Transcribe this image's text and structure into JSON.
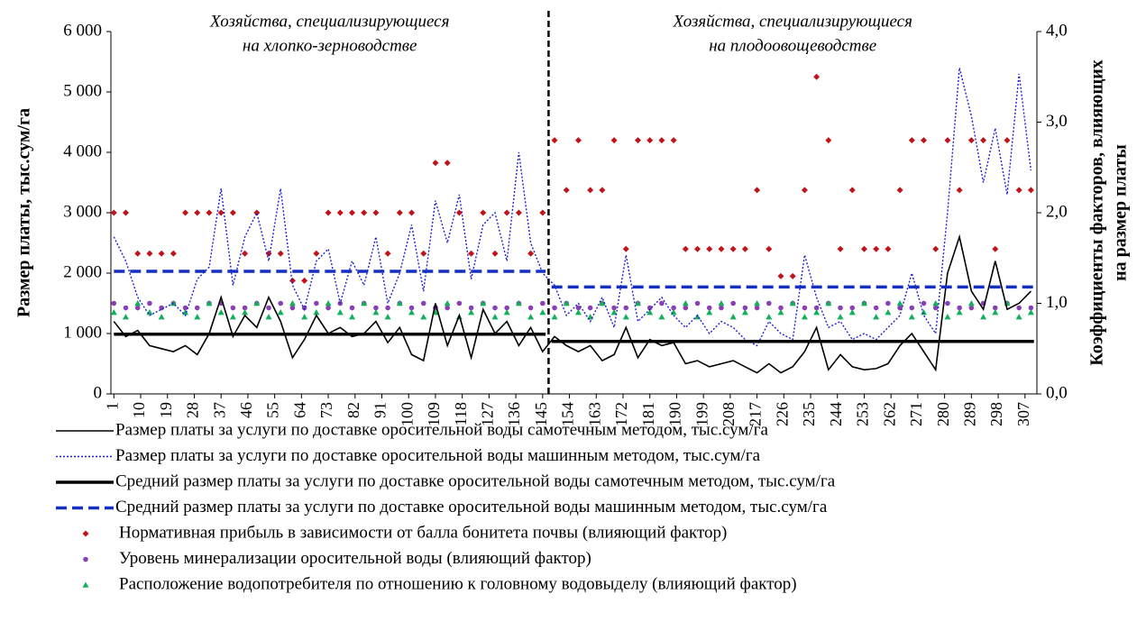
{
  "chart_data": {
    "type": "line",
    "annotations": [
      [
        "Хозяйства, специализирующиеся",
        "на хлопко-зерноводстве"
      ],
      [
        "Хозяйства, специализирующиеся",
        "на плодоовощеводстве"
      ]
    ],
    "divider_x": 147,
    "ylabel": "Размер платы, тыс.сум/га",
    "y2label": [
      "Коэффициенты факторов, влияющих",
      "на размер платы"
    ],
    "xlim": [
      0,
      311
    ],
    "xticks": [
      1,
      10,
      19,
      28,
      37,
      46,
      55,
      64,
      73,
      82,
      91,
      100,
      109,
      118,
      127,
      136,
      145,
      154,
      163,
      172,
      181,
      190,
      199,
      208,
      217,
      226,
      235,
      244,
      253,
      262,
      271,
      280,
      289,
      298,
      307
    ],
    "ylim": [
      0,
      6000
    ],
    "yticks": [
      0,
      {
        "value": 1000,
        "label": "1 000"
      },
      {
        "value": 2000,
        "label": "2 000"
      },
      {
        "value": 3000,
        "label": "3 000"
      },
      {
        "value": 4000,
        "label": "4 000"
      },
      {
        "value": 5000,
        "label": "5 000"
      },
      {
        "value": 6000,
        "label": "6 000"
      }
    ],
    "y2lim": [
      0,
      4
    ],
    "y2ticks": [
      {
        "value": 0,
        "label": "0,0"
      },
      {
        "value": 1,
        "label": "1,0"
      },
      {
        "value": 2,
        "label": "2,0"
      },
      {
        "value": 3,
        "label": "3,0"
      },
      {
        "value": 4,
        "label": "4,0"
      }
    ],
    "x": [
      1,
      5,
      9,
      13,
      17,
      21,
      25,
      29,
      33,
      37,
      41,
      45,
      49,
      53,
      57,
      61,
      65,
      69,
      73,
      77,
      81,
      85,
      89,
      93,
      97,
      101,
      105,
      109,
      113,
      117,
      121,
      125,
      129,
      133,
      137,
      141,
      145,
      149,
      153,
      157,
      161,
      165,
      169,
      173,
      177,
      181,
      185,
      189,
      193,
      197,
      201,
      205,
      209,
      213,
      217,
      221,
      225,
      229,
      233,
      237,
      241,
      245,
      249,
      253,
      257,
      261,
      265,
      269,
      273,
      277,
      281,
      285,
      289,
      293,
      297,
      301,
      305,
      309
    ],
    "series": [
      {
        "name": "Размер платы за услуги  по доставке оросительной воды самотечным методом, тыс.сум/га",
        "color": "#000000",
        "style": "line",
        "values": [
          1200,
          950,
          1050,
          800,
          750,
          700,
          800,
          650,
          1000,
          1600,
          950,
          1300,
          1100,
          1600,
          1200,
          600,
          900,
          1300,
          1000,
          1100,
          950,
          1000,
          1200,
          850,
          1100,
          650,
          550,
          1500,
          800,
          1300,
          600,
          1400,
          1000,
          1200,
          800,
          1100,
          700,
          950,
          800,
          700,
          800,
          550,
          650,
          1100,
          600,
          900,
          800,
          850,
          500,
          550,
          450,
          500,
          550,
          450,
          350,
          500,
          350,
          450,
          700,
          1100,
          400,
          650,
          450,
          400,
          420,
          500,
          800,
          1000,
          700,
          400,
          2000,
          2600,
          1700,
          1400,
          2200,
          1400,
          1500,
          1700
        ]
      },
      {
        "name": "Размер платы за услуги  по доставке оросительной воды машинным методом, тыс.сум/га",
        "color": "#1f1fd1",
        "style": "dotted",
        "values": [
          2600,
          2200,
          1600,
          1300,
          1400,
          1500,
          1300,
          1900,
          2100,
          3400,
          1800,
          2600,
          3000,
          2200,
          3400,
          1800,
          1400,
          2200,
          2400,
          1500,
          2200,
          1800,
          2600,
          1500,
          2000,
          2800,
          1700,
          3200,
          2500,
          3300,
          1900,
          2800,
          3000,
          2200,
          4000,
          2500,
          2000,
          1800,
          1300,
          1500,
          1200,
          1600,
          1100,
          2300,
          1200,
          1400,
          1600,
          1300,
          1100,
          1300,
          1000,
          1200,
          1100,
          900,
          800,
          1200,
          1000,
          900,
          2300,
          1600,
          1100,
          1200,
          900,
          1000,
          900,
          1100,
          1300,
          2000,
          1300,
          1000,
          3000,
          5400,
          4600,
          3500,
          4400,
          3300,
          5300,
          3700
        ]
      },
      {
        "name": "Средний размер платы за услуги  по доставке оросительной воды самотечным методом, тыс.сум/га",
        "color": "#000000",
        "style": "thick",
        "x": [
          1,
          146,
          147,
          148,
          310
        ],
        "values": [
          990,
          990,
          null,
          870,
          870
        ]
      },
      {
        "name": "Средний размер платы за услуги  по доставке оросительной воды машинным методом, тыс.сум/га",
        "color": "#1530c0",
        "style": "dashed",
        "x": [
          1,
          146,
          147,
          148,
          310
        ],
        "values": [
          2030,
          2030,
          null,
          1770,
          1770
        ]
      },
      {
        "name": "Нормативная прибыль в зависимости от балла бонитета почвы (влияющий фактор)",
        "color": "#c0141c",
        "style": "scatter",
        "marker": "diamond",
        "axis": "y2",
        "values": [
          2.0,
          2.0,
          1.55,
          1.55,
          1.55,
          1.55,
          2.0,
          2.0,
          2.0,
          2.0,
          2.0,
          1.55,
          2.0,
          1.55,
          1.55,
          1.25,
          1.25,
          1.55,
          2.0,
          2.0,
          2.0,
          2.0,
          2.0,
          1.55,
          2.0,
          2.0,
          1.55,
          2.55,
          2.55,
          2.0,
          1.55,
          2.0,
          1.55,
          2.0,
          2.0,
          1.55,
          2.0,
          2.8,
          2.25,
          2.8,
          2.25,
          2.25,
          2.8,
          1.6,
          2.8,
          2.8,
          2.8,
          2.8,
          1.6,
          1.6,
          1.6,
          1.6,
          1.6,
          1.6,
          2.25,
          1.6,
          1.3,
          1.3,
          2.25,
          3.5,
          2.8,
          1.6,
          2.25,
          1.6,
          1.6,
          1.6,
          2.25,
          2.8,
          2.8,
          1.6,
          2.8,
          2.25,
          2.8,
          2.8,
          1.6,
          2.8,
          2.25,
          2.25
        ]
      },
      {
        "name": "Уровень минерализации  оросительной воды (влияющий фактор)",
        "color": "#8b3fb5",
        "style": "scatter",
        "marker": "circle",
        "axis": "y2",
        "values": [
          1.0,
          0.95,
          0.95,
          1.0,
          0.95,
          1.0,
          0.95,
          0.95,
          1.0,
          1.0,
          0.95,
          0.95,
          1.0,
          0.95,
          1.0,
          0.95,
          0.95,
          1.0,
          0.95,
          1.0,
          0.95,
          1.0,
          0.95,
          0.95,
          1.0,
          0.95,
          1.0,
          0.95,
          0.95,
          1.0,
          0.95,
          1.0,
          0.95,
          0.95,
          1.0,
          0.95,
          1.0,
          0.95,
          1.0,
          0.95,
          0.95,
          1.0,
          0.95,
          0.95,
          1.0,
          0.95,
          1.0,
          0.95,
          0.95,
          1.0,
          0.95,
          0.95,
          1.0,
          0.95,
          0.95,
          1.0,
          0.95,
          1.0,
          0.95,
          0.95,
          1.0,
          0.95,
          0.95,
          1.0,
          0.95,
          1.0,
          0.95,
          0.95,
          1.0,
          0.95,
          1.0,
          0.95,
          0.95,
          1.0,
          0.95,
          1.0,
          0.95,
          0.95
        ]
      },
      {
        "name": "Расположение водопотребителя по отношению к головному водовыделу (влияющий фактор)",
        "color": "#13b05a",
        "style": "scatter",
        "marker": "triangle",
        "axis": "y2",
        "values": [
          0.9,
          0.85,
          1.0,
          0.9,
          0.85,
          1.0,
          0.9,
          0.85,
          1.0,
          0.9,
          0.85,
          0.9,
          1.0,
          0.85,
          0.9,
          1.0,
          0.85,
          0.9,
          1.0,
          0.9,
          0.85,
          1.0,
          0.9,
          0.85,
          1.0,
          0.9,
          0.85,
          0.9,
          1.0,
          0.85,
          0.9,
          1.0,
          0.85,
          0.9,
          1.0,
          0.85,
          0.9,
          0.85,
          1.0,
          0.9,
          0.85,
          1.0,
          0.9,
          0.85,
          1.0,
          0.9,
          0.85,
          0.9,
          1.0,
          0.85,
          0.9,
          1.0,
          0.85,
          0.9,
          1.0,
          0.85,
          0.9,
          1.0,
          0.85,
          0.9,
          1.0,
          0.85,
          0.9,
          1.0,
          0.85,
          0.9,
          1.0,
          0.85,
          0.9,
          1.0,
          0.85,
          0.9,
          1.0,
          0.85,
          0.9,
          1.0,
          0.85,
          0.9
        ]
      }
    ]
  }
}
